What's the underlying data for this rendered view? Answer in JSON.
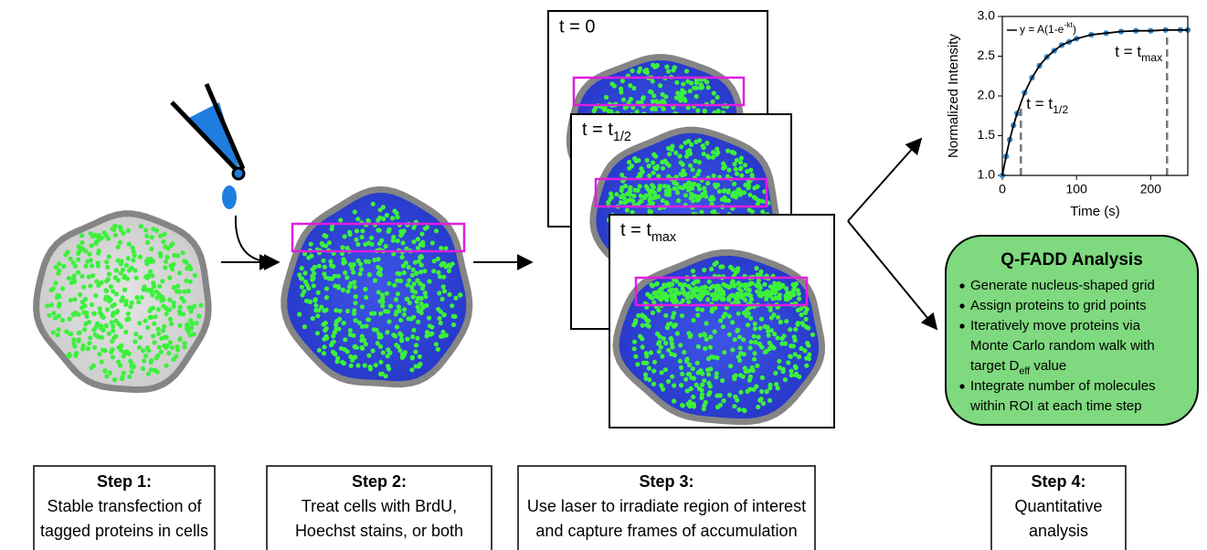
{
  "frames": [
    {
      "label": "t = 0"
    },
    {
      "label": {
        "text": "t = t",
        "sub": "1/2"
      }
    },
    {
      "label": {
        "text": "t = t",
        "sub": "max"
      }
    }
  ],
  "chart_data": {
    "type": "line",
    "xlabel": "Time (s)",
    "ylabel": "Normalized Intensity",
    "xlim": [
      0,
      250
    ],
    "ylim": [
      1.0,
      3.0
    ],
    "xticks": [
      0,
      100,
      200
    ],
    "yticks": [
      {
        "value": 1.0,
        "label": "1.0"
      },
      {
        "value": 1.5,
        "label": "1.5"
      },
      {
        "value": 2.0,
        "label": "2.0"
      },
      {
        "value": 2.5,
        "label": "2.5"
      },
      {
        "value": 3.0,
        "label": "3.0"
      }
    ],
    "x": [
      0,
      5,
      10,
      15,
      20,
      30,
      40,
      50,
      60,
      70,
      80,
      90,
      100,
      120,
      140,
      160,
      180,
      200,
      220,
      240,
      250
    ],
    "series": [
      {
        "color": "#3a8fd0",
        "line_color": "#000000",
        "values": [
          1.0,
          1.24,
          1.45,
          1.63,
          1.78,
          2.04,
          2.23,
          2.38,
          2.49,
          2.57,
          2.64,
          2.68,
          2.72,
          2.77,
          2.79,
          2.81,
          2.82,
          2.82,
          2.83,
          2.83,
          2.83
        ]
      }
    ],
    "legend": {
      "text": "y = A(1-e",
      "sup": "-kt",
      "end": ")"
    },
    "annotations": [
      {
        "x": 25,
        "label": {
          "text": "t = t",
          "sub": "1/2"
        }
      },
      {
        "x": 222,
        "label": {
          "text": "t = t",
          "sub": "max"
        }
      }
    ]
  },
  "analysis": {
    "title": "Q-FADD Analysis",
    "bullets": [
      [
        "Generate nucleus-shaped grid"
      ],
      [
        "Assign proteins to grid points"
      ],
      [
        "Iteratively move proteins via",
        "Monte Carlo random walk with",
        {
          "text": "target D",
          "sub": "eff",
          "end": "  value"
        }
      ],
      [
        "Integrate number of molecules",
        "within ROI at each time step"
      ]
    ]
  },
  "steps": [
    {
      "title": "Step 1:",
      "lines": [
        "Stable transfection of",
        "tagged proteins in cells"
      ]
    },
    {
      "title": "Step 2:",
      "lines": [
        "Treat cells with BrdU,",
        "Hoechst stains, or both"
      ]
    },
    {
      "title": "Step 3:",
      "lines": [
        "Use laser to irradiate region of interest",
        "and capture frames of accumulation"
      ]
    },
    {
      "title": "Step 4:",
      "lines": [
        "Quantitative",
        "analysis"
      ]
    }
  ]
}
